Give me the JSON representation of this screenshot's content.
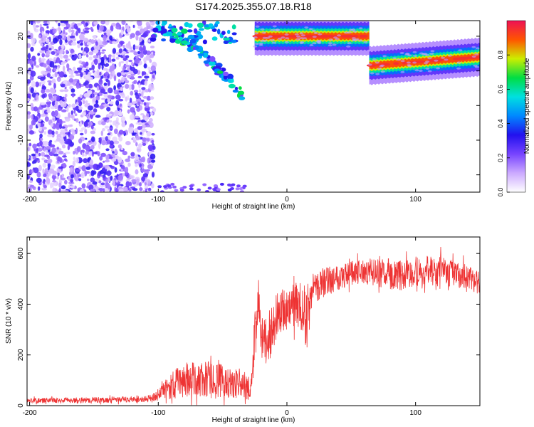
{
  "title": "S174.2025.355.07.18.R18",
  "colors": {
    "snr_line": "#ee3333",
    "frame": "#000000",
    "colorbar": [
      "#ffffff",
      "#ccaaff",
      "#7744ff",
      "#2211ee",
      "#0088ff",
      "#00e0e0",
      "#00dd44",
      "#ccee00",
      "#ff5500",
      "#ee1155"
    ]
  },
  "chart_data": [
    {
      "type": "heatmap",
      "xlabel": "Height of straight line (km)",
      "ylabel": "Frequency (Hz)",
      "xlim": [
        -202,
        150
      ],
      "ylim": [
        -25,
        24.5
      ],
      "xticks": [
        -200,
        -100,
        0,
        100
      ],
      "yticks": [
        -20,
        -10,
        0,
        10,
        20
      ],
      "colorbar": {
        "label": "Normalized spectral amplitude",
        "range": [
          0,
          1
        ],
        "ticks": [
          0.0,
          0.2,
          0.4,
          0.6,
          0.8
        ]
      },
      "features": [
        {
          "name": "broadband-scatter",
          "x_range": [
            -202,
            -103
          ],
          "y_range": [
            -25,
            24.5
          ],
          "amplitude": 0.25
        },
        {
          "name": "band-upper",
          "x_range": [
            -25,
            64
          ],
          "frequency": 20,
          "amplitude": 0.9
        },
        {
          "name": "band-lower",
          "x_range": [
            64,
            150
          ],
          "frequency_start": 11.5,
          "frequency_end": 14,
          "amplitude": 0.9
        },
        {
          "name": "descending-streak",
          "x_range": [
            -100,
            -35
          ],
          "frequency_start": 22,
          "frequency_end": 3,
          "amplitude": 0.5
        }
      ]
    },
    {
      "type": "line",
      "xlabel": "Height of straight line (km)",
      "ylabel": "SNR (10 * v/v)",
      "xlim": [
        -202,
        150
      ],
      "ylim": [
        0,
        665
      ],
      "xticks": [
        -200,
        -100,
        0,
        100
      ],
      "yticks": [
        0,
        200,
        400,
        600
      ],
      "series": [
        {
          "name": "SNR",
          "x": [
            -202,
            -150,
            -110,
            -100,
            -90,
            -80,
            -60,
            -40,
            -28,
            -24,
            -22,
            -20,
            -16,
            -10,
            -5,
            0,
            10,
            15,
            20,
            30,
            40,
            60,
            80,
            90,
            100,
            120,
            140,
            150
          ],
          "mean": [
            20,
            22,
            25,
            40,
            80,
            100,
            100,
            90,
            60,
            320,
            420,
            280,
            250,
            330,
            370,
            380,
            400,
            350,
            460,
            490,
            510,
            530,
            520,
            510,
            530,
            530,
            510,
            480
          ],
          "amp": [
            10,
            12,
            12,
            20,
            55,
            70,
            75,
            60,
            40,
            120,
            70,
            90,
            90,
            100,
            90,
            80,
            100,
            120,
            60,
            60,
            55,
            50,
            60,
            60,
            60,
            60,
            50,
            45
          ]
        }
      ]
    }
  ]
}
